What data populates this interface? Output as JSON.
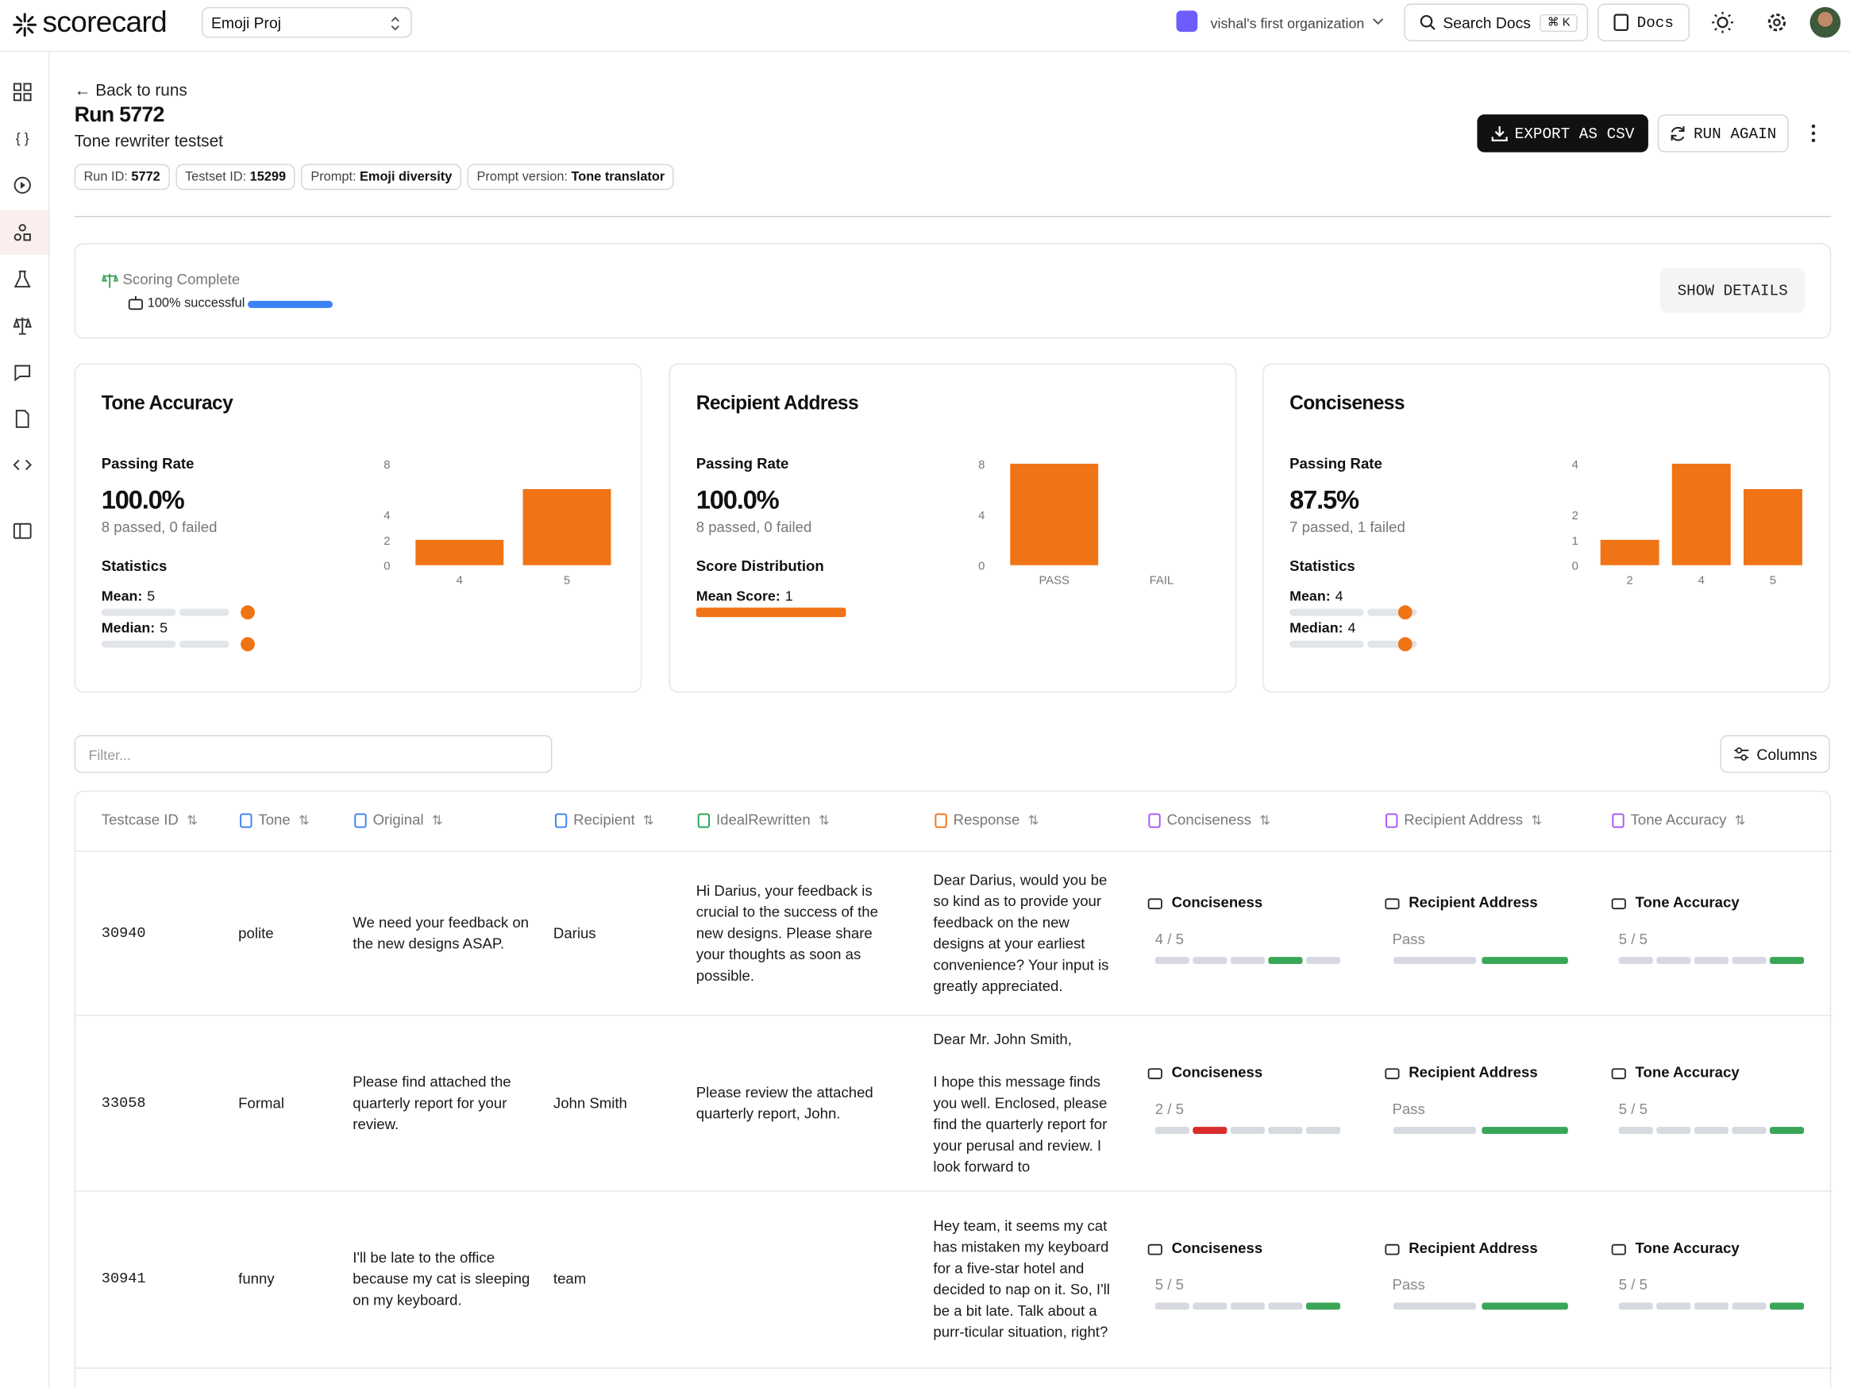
{
  "header": {
    "brand": "scorecard",
    "project": "Emoji Proj",
    "org": "vishal's first organization",
    "search": "Search Docs",
    "shortcut": "⌘ K",
    "docs": "Docs"
  },
  "page": {
    "back": "Back to runs",
    "title": "Run 5772",
    "subtitle": "Tone rewriter testset",
    "tags": [
      {
        "label": "Run ID:",
        "value": "5772"
      },
      {
        "label": "Testset ID:",
        "value": "15299"
      },
      {
        "label": "Prompt:",
        "value": "Emoji diversity"
      },
      {
        "label": "Prompt version:",
        "value": "Tone translator"
      }
    ],
    "export": "EXPORT AS CSV",
    "run_again": "RUN AGAIN"
  },
  "status": {
    "title": "Scoring Complete",
    "progress": "100% successful",
    "show_details": "SHOW DETAILS"
  },
  "metrics": [
    {
      "title": "Tone Accuracy",
      "rate_label": "Passing Rate",
      "rate": "100.0%",
      "passed": "8 passed, 0 failed",
      "stats_label": "Statistics",
      "stats": [
        {
          "label": "Mean:",
          "value": 5
        },
        {
          "label": "Median:",
          "value": 5
        }
      ],
      "chart": {
        "type": "bar",
        "categories": [
          "4",
          "5"
        ],
        "values": [
          2,
          6
        ],
        "ylim": [
          0,
          8
        ],
        "yticks": [
          0,
          2,
          4,
          8
        ],
        "color": "#f07316"
      }
    },
    {
      "title": "Recipient Address",
      "rate_label": "Passing Rate",
      "rate": "100.0%",
      "passed": "8 passed, 0 failed",
      "stats_label": "Score Distribution",
      "stats": [
        {
          "label": "Mean Score:",
          "value": 1
        }
      ],
      "chart": {
        "type": "bar",
        "categories": [
          "PASS",
          "FAIL"
        ],
        "values": [
          8,
          0
        ],
        "ylim": [
          0,
          8
        ],
        "yticks": [
          0,
          4,
          8
        ],
        "color": "#f07316"
      }
    },
    {
      "title": "Conciseness",
      "rate_label": "Passing Rate",
      "rate": "87.5%",
      "passed": "7 passed, 1 failed",
      "stats_label": "Statistics",
      "stats": [
        {
          "label": "Mean:",
          "value": 4
        },
        {
          "label": "Median:",
          "value": 4
        }
      ],
      "chart": {
        "type": "bar",
        "categories": [
          "2",
          "4",
          "5"
        ],
        "values": [
          1,
          4,
          3
        ],
        "ylim": [
          0,
          4
        ],
        "yticks": [
          0,
          1,
          2,
          4
        ],
        "color": "#f07316"
      }
    }
  ],
  "table": {
    "filter": "Filter...",
    "columns_button": "Columns",
    "headers": [
      "Testcase ID",
      "Tone",
      "Original",
      "Recipient",
      "IdealRewritten",
      "Response",
      "Conciseness",
      "Recipient Address",
      "Tone Accuracy"
    ],
    "rows": [
      {
        "id": "30940",
        "tone": "polite",
        "original": "We need your feedback on the new designs ASAP.",
        "recipient": "Darius",
        "ideal": "Hi Darius, your feedback is crucial to the success of the new designs. Please share your thoughts as soon as possible.",
        "response": "Dear Darius, would you be so kind as to provide your feedback on the new designs at your earliest convenience? Your input is greatly appreciated.",
        "scores": [
          {
            "name": "Conciseness",
            "value": 4,
            "label": "4 / 5",
            "color": "#3aa657"
          },
          {
            "name": "Recipient Address",
            "label": "Pass",
            "color": "#3aa657"
          },
          {
            "name": "Tone Accuracy",
            "value": 5,
            "label": "5 / 5",
            "color": "#3aa657"
          }
        ]
      },
      {
        "id": "33058",
        "tone": "Formal",
        "original": "Please find attached the quarterly report for your review.",
        "recipient": "John Smith",
        "ideal": "Please review the attached quarterly report, John.",
        "response": "Dear Mr. John Smith,\n\nI hope this message finds you well. Enclosed, please find the quarterly report for your perusal and review. I look forward to",
        "scores": [
          {
            "name": "Conciseness",
            "value": 2,
            "label": "2 / 5",
            "color": "#d92d2d"
          },
          {
            "name": "Recipient Address",
            "label": "Pass",
            "color": "#3aa657"
          },
          {
            "name": "Tone Accuracy",
            "value": 5,
            "label": "5 / 5",
            "color": "#3aa657"
          }
        ]
      },
      {
        "id": "30941",
        "tone": "funny",
        "original": "I'll be late to the office because my cat is sleeping on my keyboard.",
        "recipient": "team",
        "response": "Hey team, it seems my cat has mistaken my keyboard for a five-star hotel and decided to nap on it. So, I'll be a bit late. Talk about a purr-ticular situation, right?",
        "scores": [
          {
            "name": "Conciseness",
            "value": 5,
            "label": "5 / 5",
            "color": "#3aa657"
          },
          {
            "name": "Recipient Address",
            "label": "Pass",
            "color": "#3aa657"
          },
          {
            "name": "Tone Accuracy",
            "value": 5,
            "label": "5 / 5",
            "color": "#3aa657"
          }
        ]
      }
    ]
  }
}
